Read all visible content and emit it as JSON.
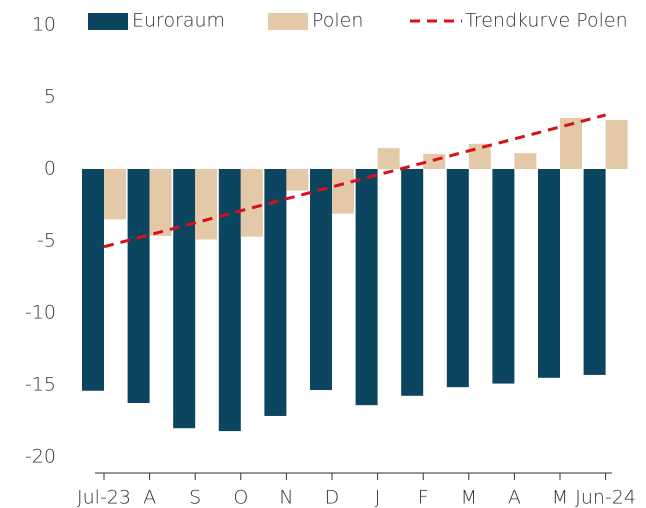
{
  "chart_data": {
    "type": "bar",
    "categories": [
      "Jul-23",
      "A",
      "S",
      "O",
      "N",
      "D",
      "J",
      "F",
      "M",
      "A",
      "M",
      "Jun-24"
    ],
    "series": [
      {
        "name": "Euroraum",
        "type": "bar",
        "color": "#0b4560",
        "values": [
          -15.4,
          -16.25,
          -18.0,
          -18.2,
          -17.15,
          -15.35,
          -16.4,
          -15.75,
          -15.15,
          -14.9,
          -14.5,
          -14.3
        ]
      },
      {
        "name": "Polen",
        "type": "bar",
        "color": "#e4c9a9",
        "values": [
          -3.5,
          -4.65,
          -4.9,
          -4.7,
          -1.5,
          -3.1,
          1.45,
          1.05,
          1.75,
          1.1,
          3.55,
          3.4
        ]
      },
      {
        "name": "Trendkurve Polen",
        "type": "line",
        "color": "#d9101a",
        "values": [
          -5.4,
          -4.57,
          -3.74,
          -2.9,
          -2.07,
          -1.24,
          -0.41,
          0.42,
          1.26,
          2.09,
          2.92,
          3.75
        ]
      }
    ],
    "ylim": [
      -20,
      10
    ],
    "yticks": [
      -20,
      -15,
      -10,
      -5,
      0,
      5,
      10
    ],
    "grid": false,
    "legend": "top"
  }
}
